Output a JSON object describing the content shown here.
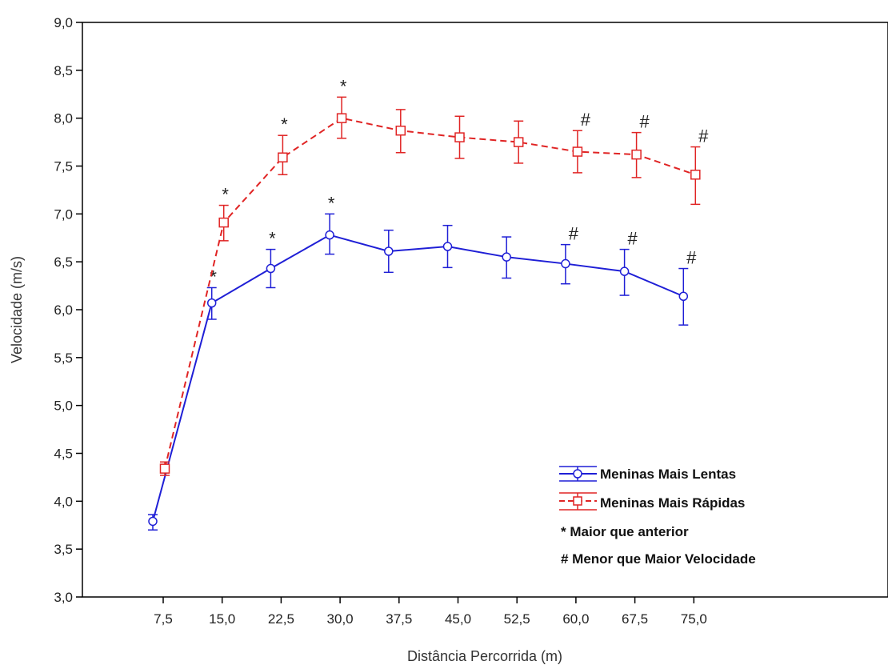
{
  "chart_data": {
    "type": "line",
    "xlabel": "Distância Percorrida (m)",
    "ylabel": "Velocidade (m/s)",
    "ylim": [
      3.0,
      9.0
    ],
    "y_ticks": [
      "3,0",
      "3,5",
      "4,0",
      "4,5",
      "5,0",
      "5,5",
      "6,0",
      "6,5",
      "7,0",
      "7,5",
      "8,0",
      "8,5",
      "9,0"
    ],
    "categories": [
      "7,5",
      "15,0",
      "22,5",
      "30,0",
      "37,5",
      "45,0",
      "52,5",
      "60,0",
      "67,5",
      "75,0"
    ],
    "series": [
      {
        "name": "Meninas Mais Lentas",
        "color": "#1f1fd6",
        "line_style": "solid",
        "marker": "circle",
        "values": [
          3.79,
          6.07,
          6.43,
          6.78,
          6.61,
          6.66,
          6.55,
          6.48,
          6.4,
          6.14
        ],
        "error_low": [
          3.7,
          5.9,
          6.23,
          6.58,
          6.39,
          6.44,
          6.33,
          6.27,
          6.15,
          5.84
        ],
        "error_high": [
          3.86,
          6.23,
          6.63,
          7.0,
          6.83,
          6.88,
          6.76,
          6.68,
          6.63,
          6.43
        ],
        "annotations": [
          "",
          "*",
          "*",
          "*",
          "",
          "",
          "",
          "#",
          "#",
          "#"
        ]
      },
      {
        "name": "Meninas Mais Rápidas",
        "color": "#e02424",
        "line_style": "dashed",
        "marker": "square",
        "values": [
          4.34,
          6.91,
          7.59,
          8.0,
          7.87,
          7.8,
          7.75,
          7.65,
          7.62,
          7.41
        ],
        "error_low": [
          4.27,
          6.72,
          7.41,
          7.79,
          7.64,
          7.58,
          7.53,
          7.43,
          7.38,
          7.1
        ],
        "error_high": [
          4.41,
          7.09,
          7.82,
          8.22,
          8.09,
          8.02,
          7.97,
          7.87,
          7.85,
          7.7
        ],
        "annotations": [
          "",
          "*",
          "*",
          "*",
          "",
          "",
          "",
          "#",
          "#",
          "#"
        ]
      }
    ],
    "legend": {
      "position": "bottom-right",
      "notes": [
        "* Maior que anterior",
        "# Menor que Maior Velocidade"
      ]
    }
  }
}
